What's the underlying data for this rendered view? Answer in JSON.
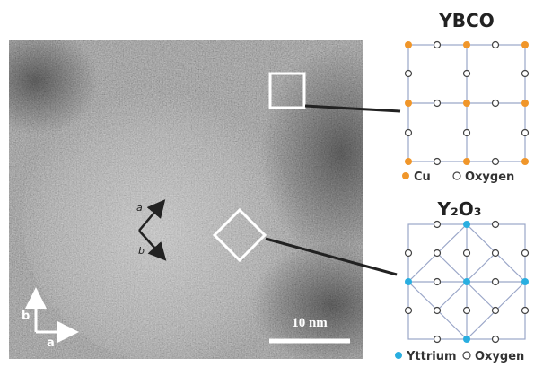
{
  "image": {
    "direction_labels": [
      "a",
      "b"
    ],
    "axis_labels": [
      "b",
      "a"
    ],
    "scale_bar": "10 nm"
  },
  "panels": [
    {
      "title": "YBCO",
      "legend": [
        "Cu",
        "Oxygen"
      ]
    },
    {
      "title": "Y₂O₃",
      "legend": [
        "Yttrium",
        "Oxygen"
      ]
    }
  ]
}
